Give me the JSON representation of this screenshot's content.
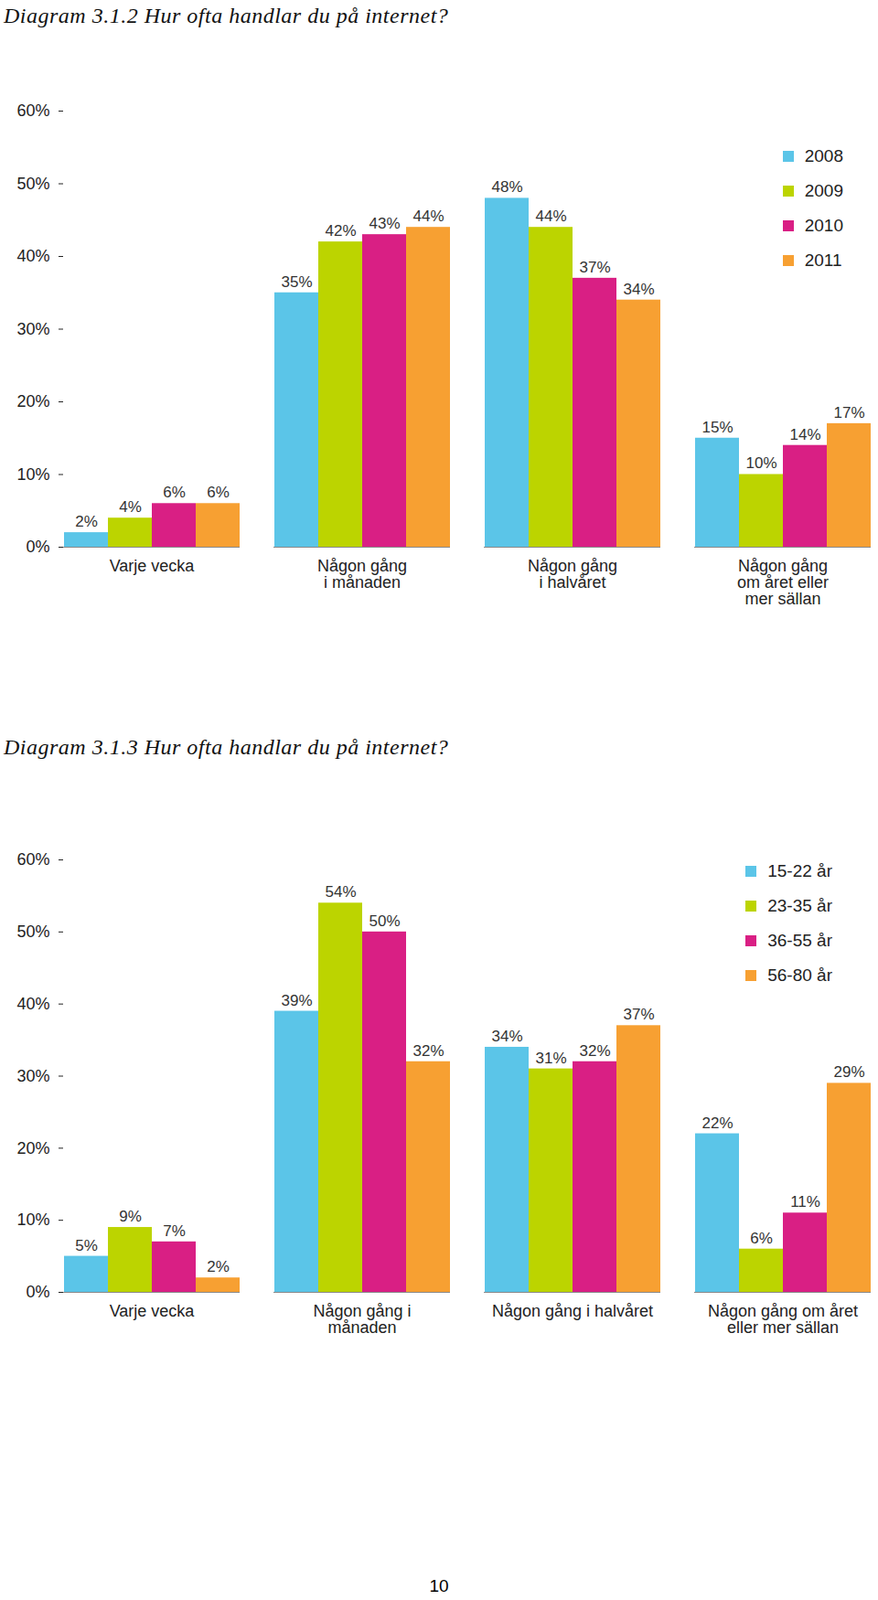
{
  "chart_data": [
    {
      "type": "bar",
      "title": "Diagram 3.1.2 Hur ofta handlar du på internet?",
      "categories": [
        "Varje vecka",
        "Någon gång\ni månaden",
        "Någon gång\ni halvåret",
        "Någon gång\nom året eller\nmer sällan"
      ],
      "series": [
        {
          "name": "2008",
          "color": "#5bc5e8",
          "values": [
            2,
            35,
            48,
            15
          ],
          "value_labels": [
            "2%",
            "35%",
            "48%",
            "15%"
          ]
        },
        {
          "name": "2009",
          "color": "#bcd400",
          "values": [
            4,
            42,
            44,
            10
          ],
          "value_labels": [
            "4%",
            "42%",
            "44%",
            "10%"
          ]
        },
        {
          "name": "2010",
          "color": "#d91f84",
          "values": [
            6,
            43,
            37,
            14
          ],
          "value_labels": [
            "6%",
            "43%",
            "37%",
            "14%"
          ]
        },
        {
          "name": "2011",
          "color": "#f7a032",
          "values": [
            6,
            44,
            34,
            17
          ],
          "value_labels": [
            "6%",
            "44%",
            "34%",
            "17%"
          ]
        }
      ],
      "ylim": [
        0,
        60
      ],
      "yticks": [
        {
          "value": 0,
          "label": "0%"
        },
        {
          "value": 10,
          "label": "10%"
        },
        {
          "value": 20,
          "label": "20%"
        },
        {
          "value": 30,
          "label": "30%"
        },
        {
          "value": 40,
          "label": "40%"
        },
        {
          "value": 50,
          "label": "50%"
        },
        {
          "value": 60,
          "label": "60%"
        }
      ],
      "grid": false,
      "legend": "top-right",
      "data_labels": true
    },
    {
      "type": "bar",
      "title": "Diagram 3.1.3 Hur ofta handlar du på internet?",
      "categories": [
        "Varje vecka",
        "Någon gång i\nmånaden",
        "Någon gång i halvåret",
        "Någon gång om året\neller mer sällan"
      ],
      "series": [
        {
          "name": "15-22 år",
          "color": "#5bc5e8",
          "values": [
            5,
            39,
            34,
            22
          ],
          "value_labels": [
            "5%",
            "39%",
            "34%",
            "22%"
          ]
        },
        {
          "name": "23-35 år",
          "color": "#bcd400",
          "values": [
            9,
            54,
            31,
            6
          ],
          "value_labels": [
            "9%",
            "54%",
            "31%",
            "6%"
          ]
        },
        {
          "name": "36-55 år",
          "color": "#d91f84",
          "values": [
            7,
            50,
            32,
            11
          ],
          "value_labels": [
            "7%",
            "50%",
            "32%",
            "11%"
          ]
        },
        {
          "name": "56-80 år",
          "color": "#f7a032",
          "values": [
            2,
            32,
            37,
            29
          ],
          "value_labels": [
            "2%",
            "32%",
            "37%",
            "29%"
          ]
        }
      ],
      "ylim": [
        0,
        60
      ],
      "yticks": [
        {
          "value": 0,
          "label": "0%"
        },
        {
          "value": 10,
          "label": "10%"
        },
        {
          "value": 20,
          "label": "20%"
        },
        {
          "value": 30,
          "label": "30%"
        },
        {
          "value": 40,
          "label": "40%"
        },
        {
          "value": 50,
          "label": "50%"
        },
        {
          "value": 60,
          "label": "60%"
        }
      ],
      "grid": false,
      "legend": "top-right",
      "data_labels": true
    }
  ],
  "page_number": "10"
}
